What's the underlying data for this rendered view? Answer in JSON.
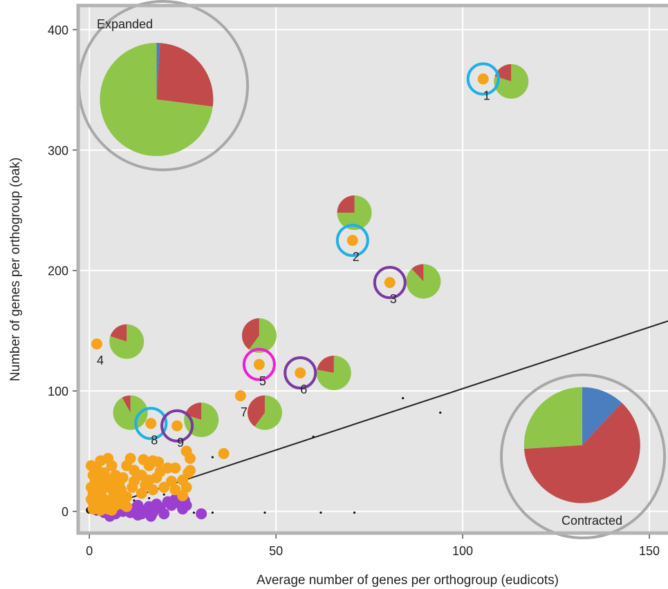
{
  "chart_data": {
    "type": "scatter",
    "xlabel": "Average number of genes per orthogroup (eudicots)",
    "ylabel": "Number of genes per orthogroup (oak)",
    "xlim": [
      -3,
      155
    ],
    "ylim": [
      -18,
      420
    ],
    "xticks": [
      0,
      50,
      100,
      150
    ],
    "yticks": [
      0,
      100,
      200,
      300,
      400
    ],
    "grid": true,
    "regression_line": {
      "x1": 0,
      "y1": 0,
      "x2": 155,
      "y2": 158
    },
    "colors": {
      "background": "#e5e5e5",
      "gridline": "#ffffff",
      "frame": "#b3b3b3",
      "orange": "#f6a31c",
      "purple": "#9b3fd1",
      "pie_green": "#8fc64a",
      "pie_red": "#c24a4a",
      "pie_blue": "#4a7ebf",
      "ring_blue": "#1fb0e6",
      "ring_purple": "#7a3aa0",
      "ring_magenta": "#ee1ed3"
    },
    "summary_pies": [
      {
        "label": "Expanded",
        "x": 18,
        "y": 342,
        "slices": [
          {
            "color": "blue",
            "fraction": 0.01
          },
          {
            "color": "red",
            "fraction": 0.26
          },
          {
            "color": "green",
            "fraction": 0.73
          }
        ]
      },
      {
        "label": "Contracted",
        "x": 132,
        "y": 55,
        "slices": [
          {
            "color": "blue",
            "fraction": 0.12
          },
          {
            "color": "red",
            "fraction": 0.62
          },
          {
            "color": "green",
            "fraction": 0.26
          }
        ]
      }
    ],
    "numbered_points": [
      {
        "label": "1",
        "x": 105.5,
        "y": 359,
        "ring": "blue",
        "pie": {
          "x": 113,
          "y": 357,
          "red": 0.2
        }
      },
      {
        "label": "2",
        "x": 70.5,
        "y": 225,
        "ring": "blue",
        "pie": {
          "x": 71,
          "y": 248,
          "red": 0.25
        }
      },
      {
        "label": "3",
        "x": 80.5,
        "y": 190,
        "ring": "purple",
        "pie": {
          "x": 89.5,
          "y": 191,
          "red": 0.12
        }
      },
      {
        "label": "4",
        "x": 2,
        "y": 139,
        "ring": null,
        "pie": {
          "x": 10,
          "y": 141,
          "red": 0.2
        }
      },
      {
        "label": "5",
        "x": 45.5,
        "y": 122,
        "ring": "magenta",
        "pie": {
          "x": 45.5,
          "y": 146,
          "red": 0.4
        }
      },
      {
        "label": "6",
        "x": 56.5,
        "y": 115,
        "ring": "purple",
        "pie": {
          "x": 65.5,
          "y": 115,
          "red": 0.22
        }
      },
      {
        "label": "7",
        "x": 40.5,
        "y": 96,
        "ring": null,
        "pie": {
          "x": 47,
          "y": 82,
          "red": 0.4
        }
      },
      {
        "label": "8",
        "x": 16.5,
        "y": 73,
        "ring": "blue",
        "pie": {
          "x": 11,
          "y": 82,
          "red": 0.08
        }
      },
      {
        "label": "9",
        "x": 23.5,
        "y": 71,
        "ring": "purple",
        "pie": {
          "x": 30,
          "y": 76,
          "red": 0.2
        }
      }
    ],
    "orange_cluster": [
      [
        0.5,
        38
      ],
      [
        1,
        30
      ],
      [
        1.5,
        25
      ],
      [
        0.5,
        20
      ],
      [
        1,
        15
      ],
      [
        0.5,
        10
      ],
      [
        1.2,
        5
      ],
      [
        2,
        35
      ],
      [
        2.5,
        28
      ],
      [
        3,
        22
      ],
      [
        3.5,
        18
      ],
      [
        2,
        12
      ],
      [
        2.5,
        8
      ],
      [
        3,
        4
      ],
      [
        4,
        32
      ],
      [
        4.5,
        27
      ],
      [
        5,
        44
      ],
      [
        5.5,
        20
      ],
      [
        6,
        25
      ],
      [
        6.5,
        15
      ],
      [
        7,
        30
      ],
      [
        7.5,
        12
      ],
      [
        8,
        22
      ],
      [
        8.5,
        18
      ],
      [
        9,
        28
      ],
      [
        10,
        12
      ],
      [
        11,
        44
      ],
      [
        11.5,
        20
      ],
      [
        12,
        25
      ],
      [
        13,
        30
      ],
      [
        14,
        15
      ],
      [
        14.5,
        43
      ],
      [
        15,
        22
      ],
      [
        16,
        38
      ],
      [
        17,
        18
      ],
      [
        18,
        28
      ],
      [
        18.5,
        41
      ],
      [
        19,
        33
      ],
      [
        20,
        20
      ],
      [
        21,
        36
      ],
      [
        22,
        25
      ],
      [
        23,
        18
      ],
      [
        4,
        10
      ],
      [
        5,
        6
      ],
      [
        6,
        8
      ],
      [
        7,
        5
      ],
      [
        8,
        9
      ],
      [
        9,
        6
      ],
      [
        10,
        4
      ],
      [
        1,
        2
      ],
      [
        2,
        3
      ],
      [
        3,
        1
      ],
      [
        5,
        2
      ],
      [
        6,
        1
      ],
      [
        27,
        44
      ],
      [
        26,
        50
      ],
      [
        26.5,
        32
      ],
      [
        23,
        36
      ],
      [
        25,
        26
      ],
      [
        26,
        20
      ],
      [
        25,
        13
      ],
      [
        27,
        34
      ],
      [
        36,
        48
      ],
      [
        17,
        42
      ],
      [
        6,
        38
      ],
      [
        3,
        42
      ],
      [
        12,
        34
      ],
      [
        14,
        30
      ],
      [
        16,
        26
      ],
      [
        10,
        38
      ]
    ],
    "purple_cluster": [
      [
        2,
        1
      ],
      [
        3,
        2
      ],
      [
        4,
        -1
      ],
      [
        5,
        3
      ],
      [
        6,
        1
      ],
      [
        7,
        -2
      ],
      [
        8,
        2
      ],
      [
        9,
        0
      ],
      [
        10,
        3
      ],
      [
        11,
        -1
      ],
      [
        12,
        2
      ],
      [
        13,
        5
      ],
      [
        14,
        -2
      ],
      [
        15,
        1
      ],
      [
        16,
        4
      ],
      [
        17,
        -1
      ],
      [
        18,
        6
      ],
      [
        19,
        3
      ],
      [
        20,
        -2
      ],
      [
        21,
        8
      ],
      [
        22,
        5
      ],
      [
        23,
        10
      ],
      [
        24,
        7
      ],
      [
        25,
        2
      ],
      [
        25.5,
        9
      ],
      [
        26,
        5
      ],
      [
        16.5,
        -4
      ],
      [
        13,
        -3
      ],
      [
        5.5,
        -4
      ],
      [
        30,
        -2
      ]
    ],
    "black_points": [
      [
        0,
        1
      ],
      [
        0.5,
        3
      ],
      [
        1,
        2
      ],
      [
        2,
        5
      ],
      [
        3,
        4
      ],
      [
        4,
        6
      ],
      [
        5,
        7
      ],
      [
        6,
        8
      ],
      [
        7,
        9
      ],
      [
        8,
        6
      ],
      [
        9,
        11
      ],
      [
        10,
        10
      ],
      [
        11,
        13
      ],
      [
        12,
        9
      ],
      [
        14,
        13
      ],
      [
        16,
        11
      ],
      [
        18,
        16
      ],
      [
        20,
        14
      ],
      [
        22,
        12
      ],
      [
        24,
        17
      ],
      [
        26,
        15
      ],
      [
        28,
        -1
      ],
      [
        33,
        -1
      ],
      [
        47,
        -1
      ],
      [
        62,
        -1
      ],
      [
        71,
        -1
      ],
      [
        60,
        62
      ],
      [
        84,
        94
      ],
      [
        94,
        82
      ],
      [
        33,
        45
      ],
      [
        25,
        27
      ]
    ],
    "labels": {
      "expanded": "Expanded",
      "contracted": "Contracted"
    }
  }
}
